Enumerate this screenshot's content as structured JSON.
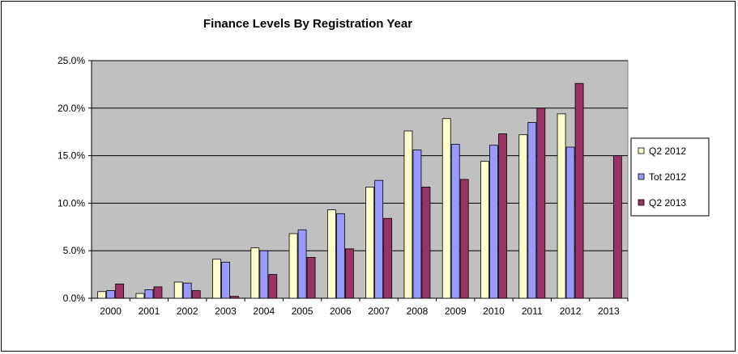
{
  "chart_data": {
    "type": "bar",
    "title": "Finance Levels By Registration Year",
    "xlabel": "",
    "ylabel": "",
    "ylim": [
      0,
      25
    ],
    "yticks": [
      "0.0%",
      "5.0%",
      "10.0%",
      "15.0%",
      "20.0%",
      "25.0%"
    ],
    "ytick_values": [
      0,
      5,
      10,
      15,
      20,
      25
    ],
    "grid": true,
    "legend_position": "right",
    "categories": [
      "2000",
      "2001",
      "2002",
      "2003",
      "2004",
      "2005",
      "2006",
      "2007",
      "2008",
      "2009",
      "2010",
      "2011",
      "2012",
      "2013"
    ],
    "series": [
      {
        "name": "Q2 2012",
        "color": "#FFFFCC",
        "values": [
          0.7,
          0.5,
          1.7,
          4.1,
          5.3,
          6.8,
          9.3,
          11.7,
          17.6,
          18.9,
          14.4,
          17.2,
          19.4,
          null
        ]
      },
      {
        "name": "Tot 2012",
        "color": "#9999FF",
        "values": [
          0.8,
          0.9,
          1.6,
          3.8,
          5.0,
          7.2,
          8.9,
          12.4,
          15.6,
          16.2,
          16.1,
          18.5,
          15.9,
          null
        ]
      },
      {
        "name": "Q2 2013",
        "color": "#993366",
        "values": [
          1.5,
          1.2,
          0.8,
          0.2,
          2.5,
          4.3,
          5.2,
          8.4,
          11.7,
          12.5,
          17.3,
          20.0,
          22.6,
          15.0
        ]
      }
    ],
    "plot_background": "#C0C0C0"
  }
}
